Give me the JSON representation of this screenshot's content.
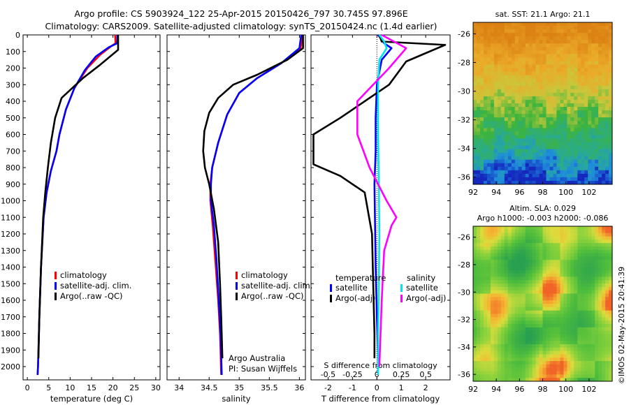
{
  "header": {
    "line1": "Argo profile: CS 5903924_122 25-Apr-2015 20150426_797 30.745S 97.896E",
    "line2": "Climatology: CARS2009. Satellite-adjusted climatology: synTS_20150424.nc (1.4d earlier)"
  },
  "colors": {
    "climatology": "#ff0000",
    "satellite": "#0000ff",
    "argo": "#000000",
    "sat_salinity": "#00e5ee",
    "argo_salinity": "#ff00ff"
  },
  "chart_data": [
    {
      "type": "line",
      "id": "temperature",
      "xlabel": "temperature (deg C)",
      "ylabel": "",
      "xlim": [
        -1,
        31
      ],
      "ylim": [
        2080,
        0
      ],
      "xticks": [
        0,
        5,
        10,
        15,
        20,
        25,
        30
      ],
      "yticks": [
        0,
        100,
        200,
        300,
        400,
        500,
        600,
        700,
        800,
        900,
        1000,
        1100,
        1200,
        1300,
        1400,
        1500,
        1600,
        1700,
        1800,
        1900,
        2000
      ],
      "legend": [
        "climatology",
        "satellite-adj. clim.",
        "Argo(..raw -QC)"
      ],
      "series": [
        {
          "name": "climatology",
          "color": "#ff0000",
          "points": [
            [
              20.5,
              0
            ],
            [
              20.6,
              50
            ],
            [
              19.5,
              70
            ],
            [
              17,
              120
            ],
            [
              14,
              200
            ],
            [
              11,
              320
            ],
            [
              9,
              450
            ],
            [
              7.5,
              600
            ],
            [
              6.8,
              700
            ],
            [
              5.5,
              820
            ],
            [
              4.5,
              950
            ],
            [
              3.8,
              1100
            ],
            [
              3.2,
              1400
            ],
            [
              2.8,
              1700
            ],
            [
              2.5,
              2000
            ],
            [
              2.4,
              2050
            ]
          ]
        },
        {
          "name": "satellite-adj. clim.",
          "color": "#0000ff",
          "points": [
            [
              21,
              0
            ],
            [
              21,
              50
            ],
            [
              19,
              75
            ],
            [
              16,
              130
            ],
            [
              13.5,
              210
            ],
            [
              11,
              320
            ],
            [
              9,
              450
            ],
            [
              7.5,
              600
            ],
            [
              6.8,
              700
            ],
            [
              5.5,
              820
            ],
            [
              4.5,
              950
            ],
            [
              3.8,
              1100
            ],
            [
              3.2,
              1400
            ],
            [
              2.8,
              1700
            ],
            [
              2.5,
              2000
            ],
            [
              2.4,
              2050
            ]
          ]
        },
        {
          "name": "Argo(..raw -QC)",
          "color": "#000000",
          "points": [
            [
              21.2,
              0
            ],
            [
              21.2,
              90
            ],
            [
              17,
              180
            ],
            [
              13,
              260
            ],
            [
              8,
              380
            ],
            [
              6.5,
              500
            ],
            [
              5.5,
              650
            ],
            [
              4.8,
              800
            ],
            [
              4.2,
              950
            ],
            [
              3.7,
              1100
            ],
            [
              3.2,
              1400
            ],
            [
              2.8,
              1700
            ],
            [
              2.6,
              1950
            ]
          ]
        }
      ]
    },
    {
      "type": "line",
      "id": "salinity",
      "xlabel": "salinity",
      "ylabel": "",
      "xlim": [
        33.8,
        36.1
      ],
      "ylim": [
        2080,
        0
      ],
      "xticks": [
        34,
        34.5,
        35,
        35.5,
        36
      ],
      "legend": [
        "climatology",
        "satellite-adj. clim.",
        "Argo(..raw -QC)"
      ],
      "annotations": [
        "Argo Australia",
        "PI: Susan Wijffels"
      ],
      "series": [
        {
          "name": "climatology",
          "color": "#ff0000",
          "points": [
            [
              36.05,
              0
            ],
            [
              36.02,
              80
            ],
            [
              35.7,
              170
            ],
            [
              35.3,
              260
            ],
            [
              35.0,
              350
            ],
            [
              34.8,
              480
            ],
            [
              34.65,
              650
            ],
            [
              34.55,
              800
            ],
            [
              34.52,
              900
            ],
            [
              34.52,
              1000
            ],
            [
              34.56,
              1150
            ],
            [
              34.6,
              1350
            ],
            [
              34.65,
              1600
            ],
            [
              34.68,
              1800
            ],
            [
              34.7,
              2050
            ]
          ]
        },
        {
          "name": "satellite-adj. clim.",
          "color": "#0000ff",
          "points": [
            [
              36.03,
              0
            ],
            [
              36.0,
              80
            ],
            [
              35.7,
              170
            ],
            [
              35.3,
              260
            ],
            [
              35.0,
              350
            ],
            [
              34.8,
              480
            ],
            [
              34.65,
              650
            ],
            [
              34.55,
              800
            ],
            [
              34.53,
              900
            ],
            [
              34.53,
              1000
            ],
            [
              34.58,
              1150
            ],
            [
              34.62,
              1350
            ],
            [
              34.66,
              1600
            ],
            [
              34.69,
              1800
            ],
            [
              34.71,
              2050
            ]
          ]
        },
        {
          "name": "Argo(..raw -QC)",
          "color": "#000000",
          "points": [
            [
              36.06,
              0
            ],
            [
              36.06,
              80
            ],
            [
              35.8,
              150
            ],
            [
              35.3,
              240
            ],
            [
              34.9,
              300
            ],
            [
              34.65,
              380
            ],
            [
              34.5,
              470
            ],
            [
              34.42,
              580
            ],
            [
              34.4,
              700
            ],
            [
              34.43,
              800
            ],
            [
              34.5,
              900
            ],
            [
              34.58,
              1050
            ],
            [
              34.65,
              1250
            ],
            [
              34.68,
              1500
            ],
            [
              34.7,
              1700
            ],
            [
              34.72,
              1950
            ]
          ]
        }
      ]
    },
    {
      "type": "line",
      "id": "difference",
      "xlabel": "T difference from climatology",
      "xlabel2": "S difference from climatology",
      "xlim": [
        -2.7,
        3
      ],
      "xticks": [
        -2,
        -1,
        0,
        1,
        2
      ],
      "xticks_top": [
        "-0.5",
        "-0.25",
        "0",
        "0.25",
        "0.5"
      ],
      "legend_titles": [
        "temperature",
        "salinity"
      ],
      "legend": [
        "satellite",
        "Argo(-adj)",
        "satellite",
        "Argo(-adj)"
      ],
      "series": [
        {
          "name": "satellite",
          "color": "#0000ff",
          "points": [
            [
              0.05,
              0
            ],
            [
              0.3,
              50
            ],
            [
              0.6,
              80
            ],
            [
              0.2,
              150
            ],
            [
              0,
              300
            ],
            [
              -0.05,
              500
            ],
            [
              -0.05,
              700
            ],
            [
              -0.1,
              900
            ],
            [
              -0.08,
              1100
            ],
            [
              -0.05,
              1400
            ],
            [
              0,
              1700
            ],
            [
              0.05,
              1950
            ]
          ]
        },
        {
          "name": "Argo(-adj)",
          "color": "#000000",
          "points": [
            [
              0.1,
              0
            ],
            [
              0.2,
              40
            ],
            [
              2.8,
              60
            ],
            [
              1.2,
              160
            ],
            [
              0.5,
              300
            ],
            [
              -1.5,
              500
            ],
            [
              -2.6,
              600
            ],
            [
              -2.6,
              700
            ],
            [
              -2.6,
              780
            ],
            [
              -1.5,
              850
            ],
            [
              -0.5,
              950
            ],
            [
              -0.2,
              1200
            ],
            [
              -0.15,
              1500
            ],
            [
              -0.1,
              1800
            ],
            [
              -0.1,
              1950
            ]
          ]
        },
        {
          "name": "satellite",
          "color": "#00e5ee",
          "points": [
            [
              0.1,
              0
            ],
            [
              0.3,
              40
            ],
            [
              0.4,
              80
            ],
            [
              0.1,
              150
            ],
            [
              0.05,
              300
            ],
            [
              0.05,
              600
            ],
            [
              0.08,
              900
            ],
            [
              0.1,
              1200
            ],
            [
              0.08,
              1500
            ],
            [
              0.05,
              1800
            ],
            [
              0.05,
              2050
            ]
          ]
        },
        {
          "name": "Argo(-adj)",
          "color": "#ff00ff",
          "points": [
            [
              0.2,
              0
            ],
            [
              1.2,
              80
            ],
            [
              0.5,
              200
            ],
            [
              -0.8,
              400
            ],
            [
              -0.8,
              600
            ],
            [
              -0.3,
              800
            ],
            [
              0.4,
              1000
            ],
            [
              0.8,
              1100
            ],
            [
              0.6,
              1150
            ],
            [
              0.3,
              1300
            ],
            [
              0.2,
              1600
            ],
            [
              0.1,
              2000
            ]
          ]
        }
      ]
    },
    {
      "type": "heatmap",
      "id": "sst_map",
      "title": "sat. SST: 21.1  Argo: 21.1",
      "xlim": [
        92,
        104
      ],
      "ylim": [
        -36.5,
        -25.2
      ],
      "xticks": [
        92,
        94,
        96,
        98,
        100,
        102
      ],
      "yticks": [
        -26,
        -28,
        -30,
        -32,
        -34,
        -36
      ]
    },
    {
      "type": "heatmap",
      "id": "sla_map",
      "title": "Altim. SLA: 0.029",
      "subtitle": "Argo h1000: -0.003 h2000: -0.086",
      "xlim": [
        92,
        104
      ],
      "ylim": [
        -36.5,
        -25.2
      ],
      "xticks": [
        92,
        94,
        96,
        98,
        100,
        102
      ],
      "yticks": [
        -26,
        -28,
        -30,
        -32,
        -34,
        -36
      ]
    }
  ],
  "footer": {
    "stamp": "©IMOS 02-May-2015 20:41:39"
  }
}
